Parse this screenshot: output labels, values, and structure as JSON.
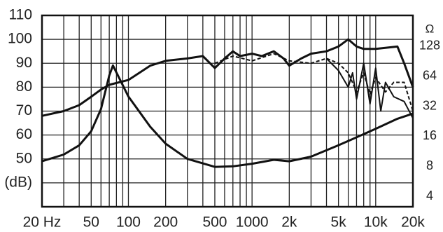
{
  "chart_data": {
    "type": "line",
    "xscale": "log",
    "xlim": [
      20,
      20000
    ],
    "xticks": [
      {
        "value": 20,
        "label": "20 Hz"
      },
      50,
      100,
      200,
      500,
      1000,
      {
        "value": 2000,
        "label": "2k"
      },
      {
        "value": 5000,
        "label": "5k"
      },
      {
        "value": 10000,
        "label": "10k"
      },
      {
        "value": 20000,
        "label": "20k"
      }
    ],
    "xminor_ticks": [
      30,
      40,
      60,
      70,
      80,
      90,
      300,
      400,
      600,
      700,
      800,
      900,
      3000,
      4000,
      6000,
      7000,
      8000,
      9000
    ],
    "ylim": [
      30,
      110
    ],
    "yticks": [
      {
        "value": 40,
        "label": "(dB)"
      },
      50,
      60,
      70,
      80,
      90,
      100,
      110
    ],
    "y2label": "Ω",
    "y2scale": "log",
    "y2lim": [
      3.15,
      260
    ],
    "y2ticks": [
      4,
      8,
      16,
      32,
      64,
      128
    ],
    "grid": true,
    "series": [
      {
        "color": "#111",
        "dash": false,
        "width": 3,
        "x": [
          20,
          30,
          40,
          50,
          60,
          70,
          100,
          150,
          200,
          300,
          400,
          500,
          600,
          700,
          800,
          1000,
          1200,
          1500,
          1800,
          2000,
          2500,
          3000,
          4000,
          5000,
          6000,
          7000,
          8000,
          10000,
          15000,
          17000,
          20000
        ],
        "values": [
          68,
          70,
          72.5,
          76,
          79,
          81,
          83,
          89,
          91,
          92,
          93,
          88,
          92,
          95,
          93,
          94,
          93,
          95,
          92,
          89,
          92,
          94,
          95,
          97,
          100,
          97,
          96,
          96,
          97,
          90,
          80
        ]
      },
      {
        "color": "#111",
        "dash": true,
        "width": 2,
        "x": [
          500,
          700,
          1000,
          1500,
          2000,
          3000,
          4000,
          5000,
          6000,
          7000,
          8000,
          9000,
          10000,
          12000,
          14000,
          17000,
          20000
        ],
        "values": [
          90,
          93,
          91,
          94,
          91,
          90,
          92,
          90,
          86,
          78,
          86,
          77,
          84,
          78,
          82,
          82,
          70
        ]
      },
      {
        "color": "#111",
        "dash": false,
        "width": 2,
        "x": [
          4000,
          5000,
          6000,
          6500,
          7000,
          8000,
          9000,
          10000,
          11000,
          12000,
          14000,
          17000,
          20000
        ],
        "values": [
          92,
          87,
          80,
          86,
          75,
          90,
          73,
          88,
          70,
          82,
          76,
          74,
          67
        ]
      },
      {
        "color": "#111",
        "dash": false,
        "width": 3,
        "axis": "y2",
        "x": [
          20,
          30,
          40,
          50,
          60,
          70,
          75,
          85,
          100,
          150,
          200,
          300,
          500,
          700,
          1000,
          1500,
          2000,
          3000,
          5000,
          10000,
          15000,
          20000
        ],
        "values": [
          9,
          10.5,
          13,
          18,
          30,
          65,
          82,
          60,
          40,
          20,
          13.5,
          9.5,
          7.9,
          8,
          8.5,
          9.3,
          9,
          10,
          13,
          19,
          24,
          27
        ]
      }
    ]
  }
}
